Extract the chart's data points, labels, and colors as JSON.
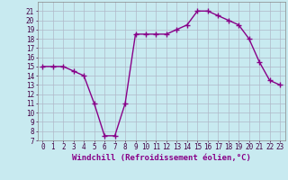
{
  "x": [
    0,
    1,
    2,
    3,
    4,
    5,
    6,
    7,
    8,
    9,
    10,
    11,
    12,
    13,
    14,
    15,
    16,
    17,
    18,
    19,
    20,
    21,
    22,
    23
  ],
  "y": [
    15,
    15,
    15,
    14.5,
    14,
    11,
    7.5,
    7.5,
    11,
    18.5,
    18.5,
    18.5,
    18.5,
    19,
    19.5,
    21,
    21,
    20.5,
    20,
    19.5,
    18,
    15.5,
    13.5,
    13
  ],
  "line_color": "#880088",
  "marker": "+",
  "marker_size": 4,
  "marker_lw": 1.0,
  "bg_color": "#c8eaf0",
  "grid_color": "#b0b8c8",
  "xlabel": "Windchill (Refroidissement éolien,°C)",
  "ylim": [
    7,
    22
  ],
  "xlim": [
    -0.5,
    23.5
  ],
  "yticks": [
    7,
    8,
    9,
    10,
    11,
    12,
    13,
    14,
    15,
    16,
    17,
    18,
    19,
    20,
    21
  ],
  "xticks": [
    0,
    1,
    2,
    3,
    4,
    5,
    6,
    7,
    8,
    9,
    10,
    11,
    12,
    13,
    14,
    15,
    16,
    17,
    18,
    19,
    20,
    21,
    22,
    23
  ],
  "tick_fontsize": 5.5,
  "xlabel_fontsize": 6.5,
  "linewidth": 1.0
}
